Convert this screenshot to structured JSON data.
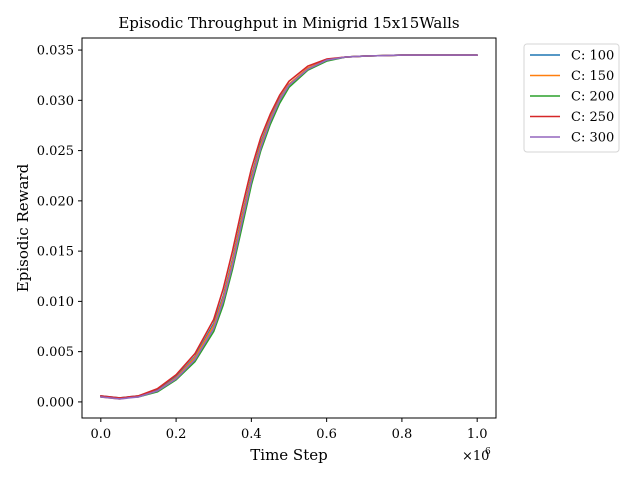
{
  "chart_data": {
    "type": "line",
    "title": "Episodic Throughput in Minigrid 15x15Walls",
    "xlabel": "Time Step",
    "ylabel": "Episodic Reward",
    "x_multiplier_label": "×10",
    "x_multiplier_exp": "6",
    "xlim": [
      -0.05,
      1.05
    ],
    "ylim": [
      -0.0016,
      0.0362
    ],
    "xticks": [
      0.0,
      0.2,
      0.4,
      0.6,
      0.8,
      1.0
    ],
    "xtick_labels": [
      "0.0",
      "0.2",
      "0.4",
      "0.6",
      "0.8",
      "1.0"
    ],
    "yticks": [
      0.0,
      0.005,
      0.01,
      0.015,
      0.02,
      0.025,
      0.03,
      0.035
    ],
    "ytick_labels": [
      "0.000",
      "0.005",
      "0.010",
      "0.015",
      "0.020",
      "0.025",
      "0.030",
      "0.035"
    ],
    "grid": false,
    "legend_position": "outside-top-right",
    "x": [
      0.0,
      0.05,
      0.1,
      0.15,
      0.2,
      0.25,
      0.3,
      0.325,
      0.35,
      0.375,
      0.4,
      0.425,
      0.45,
      0.475,
      0.5,
      0.55,
      0.6,
      0.65,
      0.7,
      0.8,
      0.9,
      1.0
    ],
    "series": [
      {
        "name": "C: 100",
        "color": "#1f77b4",
        "values": [
          0.0006,
          0.0004,
          0.0006,
          0.0012,
          0.0025,
          0.0045,
          0.0078,
          0.0105,
          0.0142,
          0.0185,
          0.0225,
          0.0258,
          0.0282,
          0.0302,
          0.0316,
          0.0332,
          0.034,
          0.0343,
          0.0344,
          0.0345,
          0.0345,
          0.0345
        ]
      },
      {
        "name": "C: 150",
        "color": "#ff7f0e",
        "values": [
          0.0005,
          0.0003,
          0.0006,
          0.0011,
          0.0024,
          0.0044,
          0.0076,
          0.0103,
          0.014,
          0.0183,
          0.0223,
          0.0256,
          0.0281,
          0.0301,
          0.0316,
          0.0332,
          0.034,
          0.0343,
          0.0344,
          0.0345,
          0.0345,
          0.0345
        ]
      },
      {
        "name": "C: 200",
        "color": "#2ca02c",
        "values": [
          0.0005,
          0.0004,
          0.0005,
          0.001,
          0.0022,
          0.004,
          0.007,
          0.0096,
          0.0132,
          0.0174,
          0.0216,
          0.025,
          0.0276,
          0.0297,
          0.0313,
          0.033,
          0.0339,
          0.0343,
          0.0344,
          0.0345,
          0.0345,
          0.0345
        ]
      },
      {
        "name": "C: 250",
        "color": "#d62728",
        "values": [
          0.0006,
          0.0004,
          0.0006,
          0.0013,
          0.0027,
          0.0048,
          0.0082,
          0.0112,
          0.015,
          0.0193,
          0.0232,
          0.0263,
          0.0286,
          0.0305,
          0.0319,
          0.0334,
          0.0341,
          0.0343,
          0.0344,
          0.0345,
          0.0345,
          0.0345
        ]
      },
      {
        "name": "C: 300",
        "color": "#9467bd",
        "values": [
          0.0005,
          0.0003,
          0.0005,
          0.0011,
          0.0023,
          0.0042,
          0.0073,
          0.01,
          0.0136,
          0.0179,
          0.022,
          0.0253,
          0.0279,
          0.03,
          0.0315,
          0.0331,
          0.034,
          0.0343,
          0.0344,
          0.0345,
          0.0345,
          0.0345
        ]
      }
    ]
  }
}
